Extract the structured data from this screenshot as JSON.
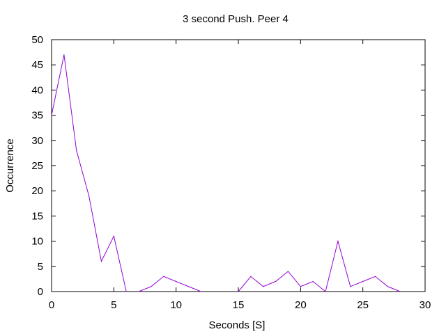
{
  "chart_data": {
    "type": "line",
    "title": "3 second Push. Peer 4",
    "xlabel": "Seconds [S]",
    "ylabel": "Occurrence",
    "xlim": [
      0,
      30
    ],
    "ylim": [
      0,
      50
    ],
    "xticks": [
      0,
      5,
      10,
      15,
      20,
      25,
      30
    ],
    "yticks": [
      0,
      5,
      10,
      15,
      20,
      25,
      30,
      35,
      40,
      45,
      50
    ],
    "grid": false,
    "legend": "none",
    "series": [
      {
        "color": "#9400d3",
        "segments": [
          {
            "x": [
              0,
              1,
              2,
              3,
              4,
              5,
              6
            ],
            "y": [
              35,
              47,
              28,
              19,
              6,
              11,
              0
            ]
          },
          {
            "x": [
              7,
              8,
              9,
              10,
              11,
              12
            ],
            "y": [
              0,
              1,
              3,
              2,
              1,
              0
            ]
          },
          {
            "x": [
              15,
              16,
              17,
              18,
              19,
              20,
              21,
              22,
              23,
              24,
              25,
              26,
              27,
              28
            ],
            "y": [
              0,
              3,
              1,
              2,
              4,
              1,
              2,
              0,
              10,
              1,
              2,
              3,
              1,
              0
            ]
          }
        ]
      }
    ]
  }
}
